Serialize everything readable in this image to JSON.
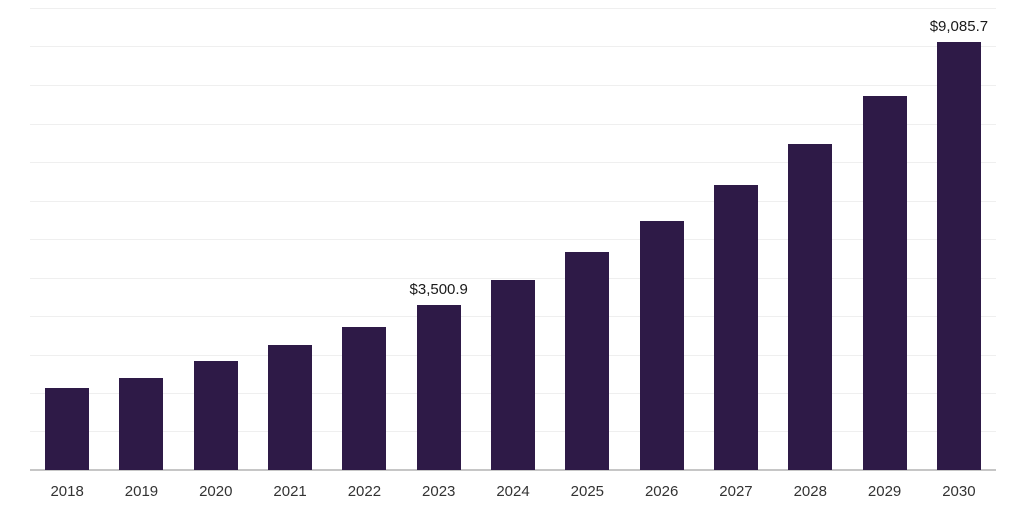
{
  "chart_data": {
    "type": "bar",
    "title": "",
    "xlabel": "",
    "ylabel": "",
    "categories": [
      "2018",
      "2019",
      "2020",
      "2021",
      "2022",
      "2023",
      "2024",
      "2025",
      "2026",
      "2027",
      "2028",
      "2029",
      "2030"
    ],
    "values": [
      1740,
      1960,
      2310,
      2650,
      3040,
      3500.9,
      4030,
      4620,
      5290,
      6060,
      6930,
      7940,
      9085.7
    ],
    "value_labels": [
      "",
      "",
      "",
      "",
      "",
      "$3,500.9",
      "",
      "",
      "",
      "",
      "",
      "",
      "$9,085.7"
    ],
    "ylim": [
      0,
      9810
    ],
    "gridline_intervals": 12,
    "grid": true,
    "legend": "none",
    "bar_color": "#2e1a47",
    "gridline_color": "#efefef",
    "axis_line_color": "#c6c6c6",
    "label_color": "#1a1a1a",
    "tick_color": "#333333"
  }
}
